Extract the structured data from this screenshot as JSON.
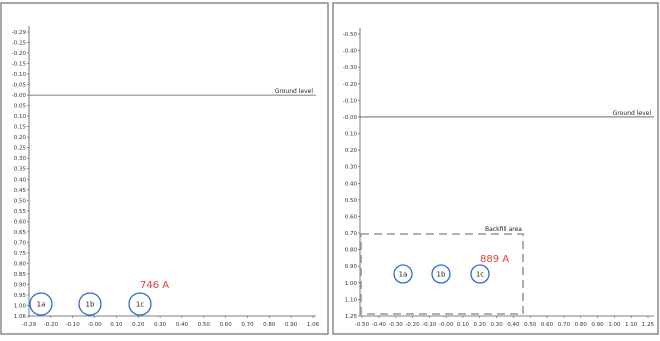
{
  "panels": [
    {
      "id": "left",
      "x_ticks": [
        "-0.29",
        "-0.20",
        "-0.10",
        "-0.00",
        "0.10",
        "0.20",
        "0.30",
        "0.40",
        "0.50",
        "0.60",
        "0.70",
        "0.80",
        "0.90",
        "1.06"
      ],
      "y_ticks": [
        "-0.29",
        "-0.25",
        "-0.20",
        "-0.15",
        "-0.10",
        "-0.05",
        "-0.00",
        "0.05",
        "0.10",
        "0.15",
        "0.20",
        "0.25",
        "0.30",
        "0.35",
        "0.40",
        "0.45",
        "0.50",
        "0.55",
        "0.60",
        "0.65",
        "0.70",
        "0.75",
        "0.80",
        "0.85",
        "0.90",
        "0.95",
        "1.00",
        "1.06"
      ],
      "ground_label": "Ground level",
      "ground_depth": 0.0,
      "current_label": "746 A",
      "cables": [
        {
          "label": "1a",
          "x": -0.25,
          "depth": 1.0
        },
        {
          "label": "1b",
          "x": 0.0,
          "depth": 1.0
        },
        {
          "label": "1c",
          "x": 0.25,
          "depth": 1.0
        }
      ]
    },
    {
      "id": "right",
      "x_ticks": [
        "-0.50",
        "-0.40",
        "-0.30",
        "-0.20",
        "-0.10",
        "-0.00",
        "0.10",
        "0.20",
        "0.30",
        "0.40",
        "0.50",
        "0.60",
        "0.70",
        "0.80",
        "0.90",
        "1.00",
        "1.10",
        "1.25"
      ],
      "y_ticks": [
        "-0.50",
        "-0.40",
        "-0.30",
        "-0.20",
        "-0.10",
        "-0.00",
        "0.10",
        "0.20",
        "0.30",
        "0.40",
        "0.50",
        "0.60",
        "0.70",
        "0.80",
        "0.90",
        "1.00",
        "1.10",
        "1.25"
      ],
      "ground_label": "Ground level",
      "ground_depth": 0.0,
      "backfill_label": "Backfill area",
      "current_label": "889 A",
      "cables": [
        {
          "label": "1a",
          "x": -0.25,
          "depth": 1.0
        },
        {
          "label": "1b",
          "x": 0.0,
          "depth": 1.0
        },
        {
          "label": "1c",
          "x": 0.25,
          "depth": 1.0
        }
      ]
    }
  ],
  "colors": {
    "axis": "#555555",
    "cable": "#2e6fce",
    "current": "#e04040",
    "backfill": "#999999",
    "frame": "#8a8a8a"
  }
}
